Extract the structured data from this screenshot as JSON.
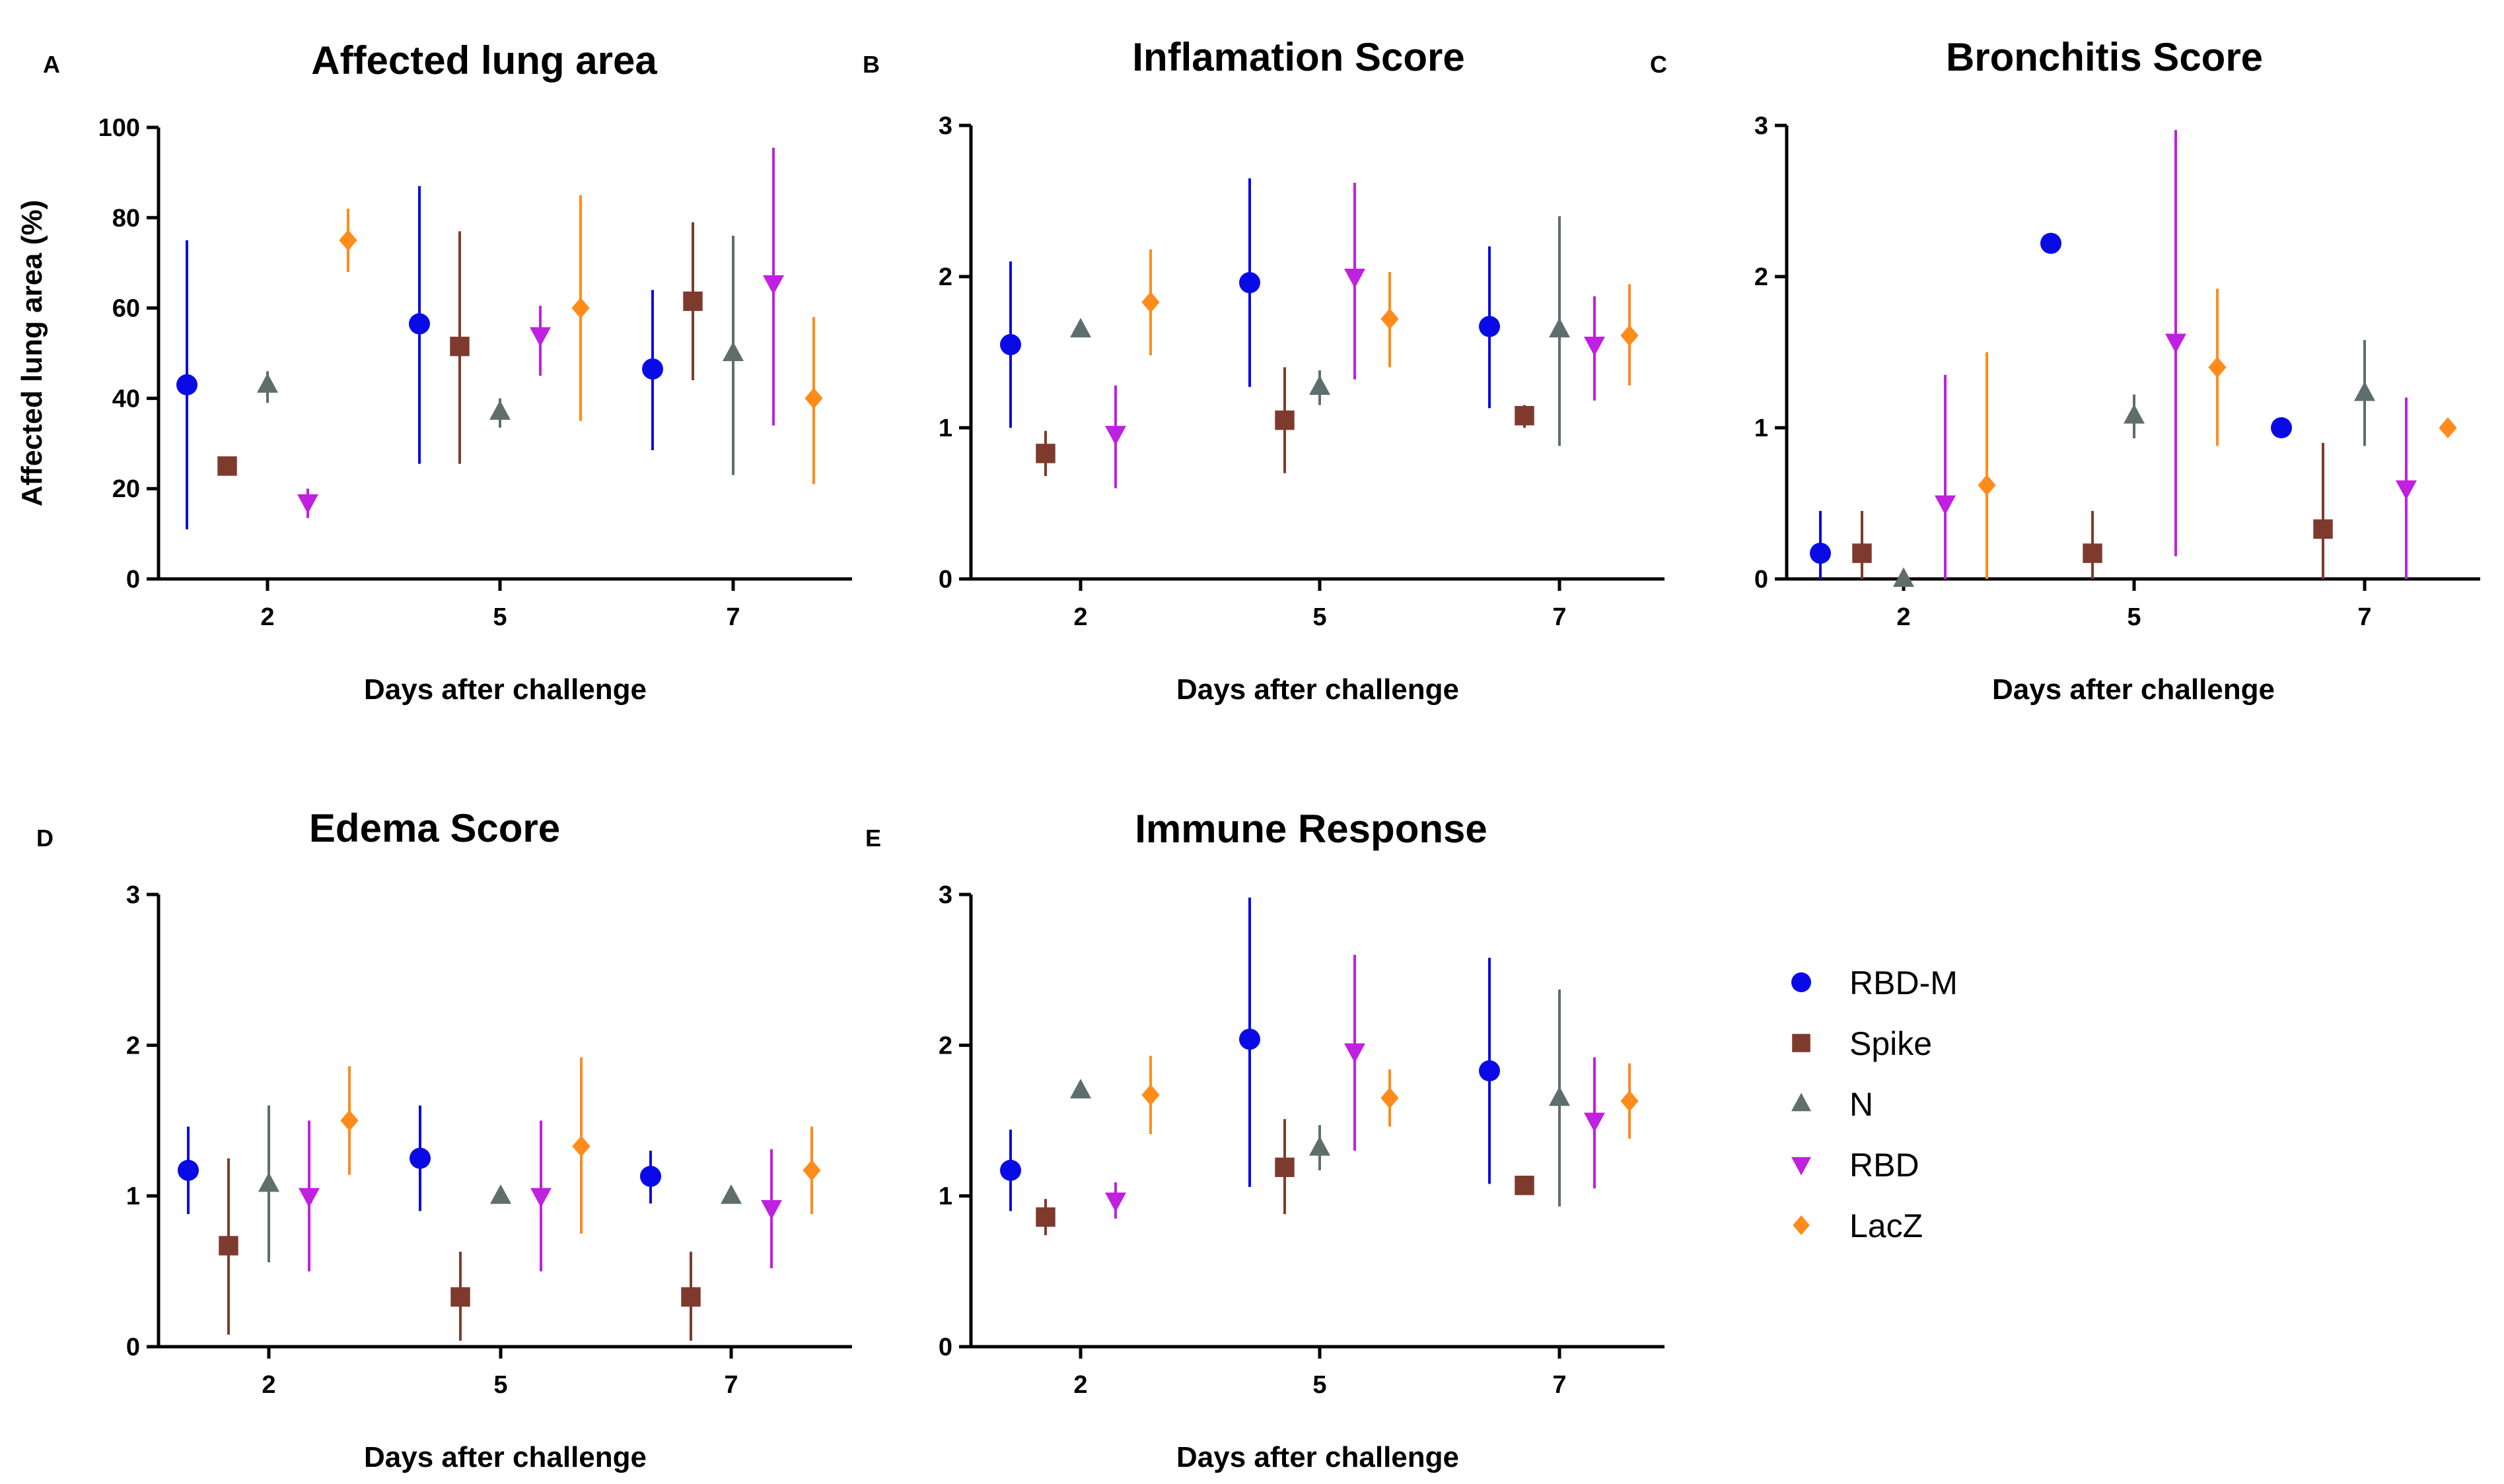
{
  "series": [
    {
      "name": "RBD-M",
      "color": "#0a0ae6",
      "marker": "circle"
    },
    {
      "name": "Spike",
      "color": "#7f3a2e",
      "marker": "square"
    },
    {
      "name": "N",
      "color": "#5e6e6b",
      "marker": "triangle-up"
    },
    {
      "name": "RBD",
      "color": "#c020e0",
      "marker": "triangle-down"
    },
    {
      "name": "LacZ",
      "color": "#ff8c1a",
      "marker": "diamond"
    }
  ],
  "chart_data": [
    {
      "type": "scatter",
      "panel": "A",
      "title": "Affected lung area",
      "xlabel": "Days after challenge",
      "ylabel": "Affected lung area (%)",
      "categories": [
        "2",
        "5",
        "7"
      ],
      "ylim": [
        0,
        100
      ],
      "yticks": [
        "0",
        "20",
        "40",
        "60",
        "80",
        "100"
      ],
      "series": [
        {
          "name": "RBD-M",
          "mean": [
            43,
            56.5,
            46.5
          ],
          "low": [
            11,
            25.5,
            28.5
          ],
          "high": [
            75,
            87,
            64
          ]
        },
        {
          "name": "Spike",
          "mean": [
            25,
            51.5,
            61.5
          ],
          "low": [
            25,
            25.5,
            44
          ],
          "high": [
            25,
            77,
            79
          ]
        },
        {
          "name": "N",
          "mean": [
            43,
            37,
            50
          ],
          "low": [
            39,
            33.5,
            23
          ],
          "high": [
            46,
            40,
            76
          ]
        },
        {
          "name": "RBD",
          "mean": [
            17,
            54,
            65.5
          ],
          "low": [
            13.5,
            45,
            34
          ],
          "high": [
            20,
            60.5,
            95.5
          ]
        },
        {
          "name": "LacZ",
          "mean": [
            75,
            60,
            40
          ],
          "low": [
            68,
            35,
            21
          ],
          "high": [
            82,
            85,
            58
          ]
        }
      ]
    },
    {
      "type": "scatter",
      "panel": "B",
      "title": "Inflamation Score",
      "xlabel": "Days after challenge",
      "ylabel": "",
      "categories": [
        "2",
        "5",
        "7"
      ],
      "ylim": [
        0,
        3
      ],
      "yticks": [
        "0",
        "1",
        "2",
        "3"
      ],
      "series": [
        {
          "name": "RBD-M",
          "mean": [
            1.55,
            1.96,
            1.67
          ],
          "low": [
            1.0,
            1.27,
            1.13
          ],
          "high": [
            2.1,
            2.65,
            2.2
          ]
        },
        {
          "name": "Spike",
          "mean": [
            0.83,
            1.05,
            1.08
          ],
          "low": [
            0.68,
            0.7,
            1.0
          ],
          "high": [
            0.98,
            1.4,
            1.15
          ]
        },
        {
          "name": "N",
          "mean": [
            1.65,
            1.27,
            1.65
          ],
          "low": [
            1.6,
            1.15,
            0.88
          ],
          "high": [
            1.7,
            1.38,
            2.4
          ]
        },
        {
          "name": "RBD",
          "mean": [
            0.96,
            2.0,
            1.55
          ],
          "low": [
            0.6,
            1.32,
            1.18
          ],
          "high": [
            1.28,
            2.62,
            1.87
          ]
        },
        {
          "name": "LacZ",
          "mean": [
            1.83,
            1.72,
            1.61
          ],
          "low": [
            1.48,
            1.4,
            1.28
          ],
          "high": [
            2.18,
            2.03,
            1.95
          ]
        }
      ]
    },
    {
      "type": "scatter",
      "panel": "C",
      "title": "Bronchitis Score",
      "xlabel": "Days after challenge",
      "ylabel": "",
      "categories": [
        "2",
        "5",
        "7"
      ],
      "ylim": [
        0,
        3
      ],
      "yticks": [
        "0",
        "1",
        "2",
        "3"
      ],
      "series": [
        {
          "name": "RBD-M",
          "mean": [
            0.17,
            2.22,
            1.0
          ],
          "low": [
            0.0,
            2.22,
            1.0
          ],
          "high": [
            0.45,
            2.22,
            1.0
          ]
        },
        {
          "name": "Spike",
          "mean": [
            0.17,
            0.17,
            0.33
          ],
          "low": [
            0.0,
            0.0,
            0.0
          ],
          "high": [
            0.45,
            0.45,
            0.9
          ]
        },
        {
          "name": "N",
          "mean": [
            0.0,
            1.08,
            1.23
          ],
          "low": [
            0.0,
            0.93,
            0.88
          ],
          "high": [
            0.0,
            1.22,
            1.58
          ]
        },
        {
          "name": "RBD",
          "mean": [
            0.5,
            1.57,
            0.6
          ],
          "low": [
            0.0,
            0.15,
            0.0
          ],
          "high": [
            1.35,
            2.97,
            1.2
          ]
        },
        {
          "name": "LacZ",
          "mean": [
            0.62,
            1.4,
            1.0
          ],
          "low": [
            0.0,
            0.88,
            1.0
          ],
          "high": [
            1.5,
            1.92,
            1.0
          ]
        }
      ]
    },
    {
      "type": "scatter",
      "panel": "D",
      "title": "Edema Score",
      "xlabel": "Days after challenge",
      "ylabel": "",
      "categories": [
        "2",
        "5",
        "7"
      ],
      "ylim": [
        0,
        3
      ],
      "yticks": [
        "0",
        "1",
        "2",
        "3"
      ],
      "series": [
        {
          "name": "RBD-M",
          "mean": [
            1.17,
            1.25,
            1.13
          ],
          "low": [
            0.88,
            0.9,
            0.95
          ],
          "high": [
            1.46,
            1.6,
            1.3
          ]
        },
        {
          "name": "Spike",
          "mean": [
            0.67,
            0.33,
            0.33
          ],
          "low": [
            0.08,
            0.04,
            0.04
          ],
          "high": [
            1.25,
            0.63,
            0.63
          ]
        },
        {
          "name": "N",
          "mean": [
            1.08,
            1.0,
            1.0
          ],
          "low": [
            0.56,
            1.0,
            1.0
          ],
          "high": [
            1.6,
            1.0,
            1.0
          ]
        },
        {
          "name": "RBD",
          "mean": [
            1.0,
            1.0,
            0.92
          ],
          "low": [
            0.5,
            0.5,
            0.52
          ],
          "high": [
            1.5,
            1.5,
            1.31
          ]
        },
        {
          "name": "LacZ",
          "mean": [
            1.5,
            1.33,
            1.17
          ],
          "low": [
            1.14,
            0.75,
            0.88
          ],
          "high": [
            1.86,
            1.92,
            1.46
          ]
        }
      ]
    },
    {
      "type": "scatter",
      "panel": "E",
      "title": "Immune Response",
      "xlabel": "Days after challenge",
      "ylabel": "",
      "categories": [
        "2",
        "5",
        "7"
      ],
      "ylim": [
        0,
        3
      ],
      "yticks": [
        "0",
        "1",
        "2",
        "3"
      ],
      "series": [
        {
          "name": "RBD-M",
          "mean": [
            1.17,
            2.04,
            1.83
          ],
          "low": [
            0.9,
            1.06,
            1.08
          ],
          "high": [
            1.44,
            2.98,
            2.58
          ]
        },
        {
          "name": "Spike",
          "mean": [
            0.86,
            1.19,
            1.07
          ],
          "low": [
            0.74,
            0.88,
            1.02
          ],
          "high": [
            0.98,
            1.51,
            1.12
          ]
        },
        {
          "name": "N",
          "mean": [
            1.7,
            1.32,
            1.65
          ],
          "low": [
            1.65,
            1.17,
            0.93
          ],
          "high": [
            1.76,
            1.47,
            2.37
          ]
        },
        {
          "name": "RBD",
          "mean": [
            0.97,
            1.96,
            1.5
          ],
          "low": [
            0.85,
            1.3,
            1.05
          ],
          "high": [
            1.09,
            2.6,
            1.92
          ]
        },
        {
          "name": "LacZ",
          "mean": [
            1.67,
            1.65,
            1.63
          ],
          "low": [
            1.41,
            1.46,
            1.38
          ],
          "high": [
            1.93,
            1.84,
            1.88
          ]
        }
      ]
    }
  ]
}
